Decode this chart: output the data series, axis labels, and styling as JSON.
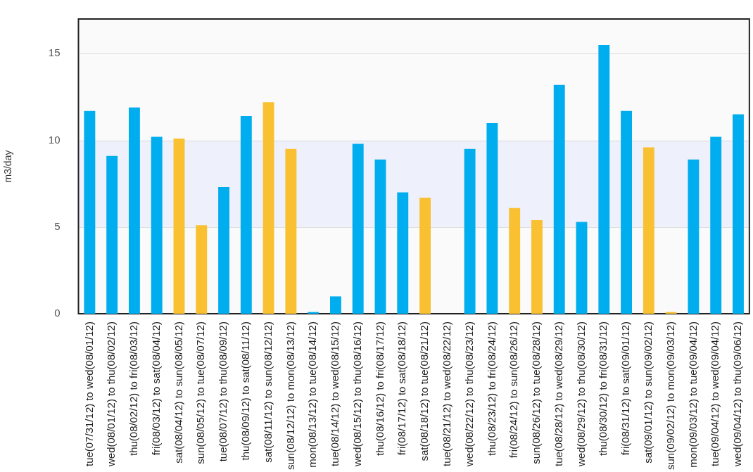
{
  "chart_data": {
    "type": "bar",
    "ylabel": "m3/day",
    "categories": [
      "tue(07/31/12) to wed(08/01/12)",
      "wed(08/01/12) to thu(08/02/12)",
      "thu(08/02/12) to fri(08/03/12)",
      "fri(08/03/12) to sat(08/04/12)",
      "sat(08/04/12) to sun(08/05/12)",
      "sun(08/05/12) to tue(08/07/12)",
      "tue(08/07/12) to thu(08/09/12)",
      "thu(08/09/12) to sat(08/11/12)",
      "sat(08/11/12) to sun(08/12/12)",
      "sun(08/12/12) to mon(08/13/12)",
      "mon(08/13/12) to tue(08/14/12)",
      "tue(08/14/12) to wed(08/15/12)",
      "wed(08/15/12) to thu(08/16/12)",
      "thu(08/16/12) to fri(08/17/12)",
      "fri(08/17/12) to sat(08/18/12)",
      "sat(08/18/12) to tue(08/21/12)",
      "tue(08/21/12) to wed(08/22/12)",
      "wed(08/22/12) to thu(08/23/12)",
      "thu(08/23/12) to fri(08/24/12)",
      "fri(08/24/12) to sun(08/26/12)",
      "sun(08/26/12) to tue(08/28/12)",
      "tue(08/28/12) to wed(08/29/12)",
      "wed(08/29/12) to thu(08/30/12)",
      "thu(08/30/12) to fri(08/31/12)",
      "fri(08/31/12) to sat(09/01/12)",
      "sat(09/01/12) to sun(09/02/12)",
      "sun(09/02/12) to mon(09/03/12)",
      "mon(09/03/12) to tue(09/04/12)",
      "tue(09/04/12) to wed(09/04/12)",
      "wed(09/04/12) to thu(09/06/12)"
    ],
    "values": [
      11.7,
      9.1,
      11.9,
      10.2,
      10.1,
      5.1,
      7.3,
      11.4,
      12.2,
      9.5,
      0.1,
      1.0,
      9.8,
      8.9,
      7.0,
      6.7,
      null,
      9.5,
      11.0,
      6.1,
      5.4,
      13.2,
      5.3,
      15.5,
      11.7,
      9.6,
      0.1,
      8.9,
      10.2,
      11.5
    ],
    "colors": [
      "#00adef",
      "#00adef",
      "#00adef",
      "#00adef",
      "#f9c132",
      "#f9c132",
      "#00adef",
      "#00adef",
      "#f9c132",
      "#f9c132",
      "#00adef",
      "#00adef",
      "#00adef",
      "#00adef",
      "#00adef",
      "#f9c132",
      "#00adef",
      "#00adef",
      "#00adef",
      "#f9c132",
      "#f9c132",
      "#00adef",
      "#00adef",
      "#00adef",
      "#00adef",
      "#f9c132",
      "#f9c132",
      "#00adef",
      "#00adef",
      "#00adef"
    ],
    "ylim": [
      0,
      17
    ],
    "yticks": [
      0,
      5,
      10,
      15
    ],
    "grid": "y",
    "bands": [
      {
        "axis": "y",
        "from": 5,
        "to": 10,
        "color": "#eef0fb"
      }
    ]
  }
}
